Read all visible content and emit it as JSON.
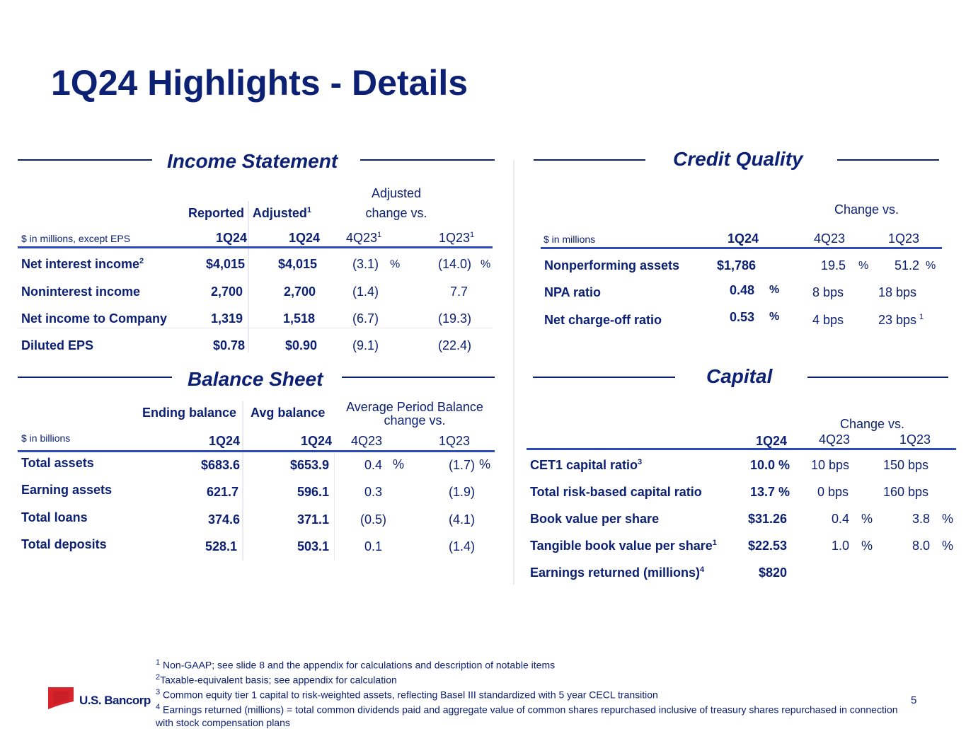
{
  "page_title": "1Q24 Highlights - Details",
  "income": {
    "title": "Income Statement",
    "hdr_reported": "Reported",
    "hdr_adjusted": "Adjusted",
    "hdr_adjusted_sup": "1",
    "hdr_change_l1": "Adjusted",
    "hdr_change_l2": "change vs.",
    "units": "$ in millions, except EPS",
    "p_reported": "1Q24",
    "p_adjusted": "1Q24",
    "p_4q": "4Q23",
    "p_4q_sup": "1",
    "p_1q": "1Q23",
    "p_1q_sup": "1",
    "rows": [
      {
        "label": "Net interest income",
        "sup": "2",
        "reported": "$4,015",
        "adjusted": "$4,015",
        "c4q": "(3.1)",
        "c4q_pct": "%",
        "c1q": "(14.0)",
        "c1q_pct": "%"
      },
      {
        "label": "Noninterest income",
        "sup": "",
        "reported": "2,700",
        "adjusted": "2,700",
        "c4q": "(1.4)",
        "c4q_pct": "",
        "c1q": "7.7",
        "c1q_pct": ""
      },
      {
        "label": "Net income to Company",
        "sup": "",
        "reported": "1,319",
        "adjusted": "1,518",
        "c4q": "(6.7)",
        "c4q_pct": "",
        "c1q": "(19.3)",
        "c1q_pct": ""
      },
      {
        "label": "Diluted EPS",
        "sup": "",
        "reported": "$0.78",
        "adjusted": "$0.90",
        "c4q": "(9.1)",
        "c4q_pct": "",
        "c1q": "(22.4)",
        "c1q_pct": ""
      }
    ]
  },
  "credit": {
    "title": "Credit Quality",
    "hdr_change": "Change vs.",
    "units": "$ in millions",
    "p_cur": "1Q24",
    "p_4q": "4Q23",
    "p_1q": "1Q23",
    "rows": [
      {
        "label": "Nonperforming assets",
        "value": "$1,786",
        "value_pct": "",
        "c4q": "19.5",
        "c4q_pct": "%",
        "c1q": "51.2",
        "c1q_pct": "%",
        "c1q_sup": ""
      },
      {
        "label": "NPA ratio",
        "value": "0.48",
        "value_pct": "%",
        "c4q": "8 bps",
        "c4q_pct": "",
        "c1q": "18 bps",
        "c1q_pct": "",
        "c1q_sup": ""
      },
      {
        "label": "Net charge-off ratio",
        "value": "0.53",
        "value_pct": "%",
        "c4q": "4 bps",
        "c4q_pct": "",
        "c1q": "23 bps",
        "c1q_pct": "",
        "c1q_sup": "1"
      }
    ]
  },
  "balance": {
    "title": "Balance Sheet",
    "hdr_ending": "Ending balance",
    "hdr_avg": "Avg balance",
    "hdr_change_l1": "Average Period Balance",
    "hdr_change_l2": "change vs.",
    "units": "$ in billions",
    "p_end": "1Q24",
    "p_avg": "1Q24",
    "p_4q": "4Q23",
    "p_1q": "1Q23",
    "rows": [
      {
        "label": "Total assets",
        "ending": "$683.6",
        "avg": "$653.9",
        "c4q": "0.4",
        "c4q_pct": "%",
        "c1q": "(1.7)",
        "c1q_pct": "%"
      },
      {
        "label": "Earning assets",
        "ending": "621.7",
        "avg": "596.1",
        "c4q": "0.3",
        "c4q_pct": "",
        "c1q": "(1.9)",
        "c1q_pct": ""
      },
      {
        "label": "Total loans",
        "ending": "374.6",
        "avg": "371.1",
        "c4q": "(0.5)",
        "c4q_pct": "",
        "c1q": "(4.1)",
        "c1q_pct": ""
      },
      {
        "label": "Total deposits",
        "ending": "528.1",
        "avg": "503.1",
        "c4q": "0.1",
        "c4q_pct": "",
        "c1q": "(1.4)",
        "c1q_pct": ""
      }
    ]
  },
  "capital": {
    "title": "Capital",
    "hdr_change": "Change vs.",
    "p_cur": "1Q24",
    "p_4q": "4Q23",
    "p_1q": "1Q23",
    "rows": [
      {
        "label": "CET1 capital ratio",
        "sup": "3",
        "value": "10.0 %",
        "c4q": "10 bps",
        "c4q_pct": "",
        "c1q": "150 bps",
        "c1q_pct": ""
      },
      {
        "label": "Total risk-based capital ratio",
        "sup": "",
        "value": "13.7 %",
        "c4q": "0 bps",
        "c4q_pct": "",
        "c1q": "160 bps",
        "c1q_pct": ""
      },
      {
        "label": "Book value per share",
        "sup": "",
        "value": "$31.26",
        "c4q": "0.4",
        "c4q_pct": "%",
        "c1q": "3.8",
        "c1q_pct": "%"
      },
      {
        "label": "Tangible book value per share",
        "sup": "1",
        "value": "$22.53",
        "c4q": "1.0",
        "c4q_pct": "%",
        "c1q": "8.0",
        "c1q_pct": "%"
      },
      {
        "label": "Earnings returned (millions)",
        "sup": "4",
        "value": "$820",
        "c4q": "",
        "c4q_pct": "",
        "c1q": "",
        "c1q_pct": ""
      }
    ]
  },
  "footnotes": [
    {
      "num": "1",
      "text": "Non-GAAP; see slide 8 and the appendix for calculations and description of notable items"
    },
    {
      "num": "2",
      "text": "Taxable-equivalent basis; see appendix for calculation"
    },
    {
      "num": "3",
      "text": "Common equity tier 1 capital to risk-weighted assets, reflecting Basel III standardized with 5 year CECL transition"
    },
    {
      "num": "4",
      "text": "Earnings returned (millions) = total common dividends paid and aggregate value of common shares repurchased inclusive of treasury shares repurchased in connection with stock compensation plans"
    }
  ],
  "logo_text": "U.S. Bancorp",
  "page_number": "5",
  "colors": {
    "brand_navy": "#0c2074",
    "rule_blue": "#2c4bb8",
    "logo_red": "#d8232a"
  }
}
